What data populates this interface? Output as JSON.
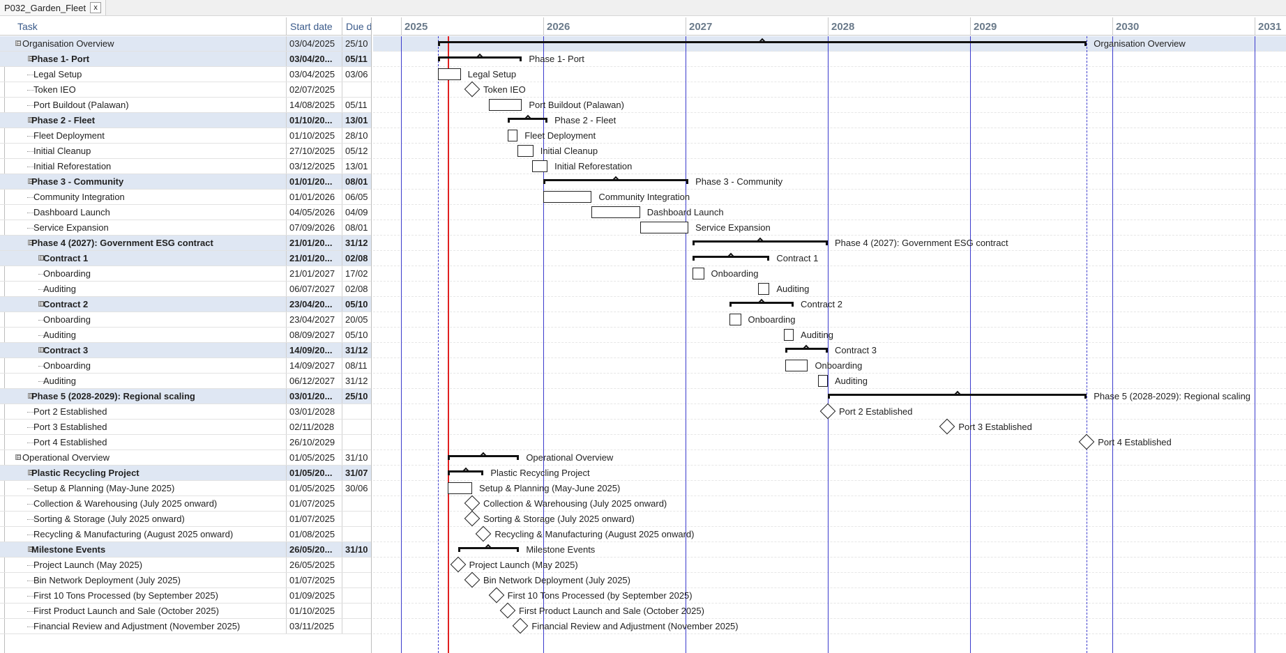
{
  "tab": {
    "title": "P032_Garden_Fleet",
    "close_label": "x"
  },
  "grid": {
    "columns": {
      "task": "Task",
      "start": "Start date",
      "due": "Due d"
    }
  },
  "timeline": {
    "years": [
      "2025",
      "2026",
      "2027",
      "2028",
      "2029",
      "2030",
      "2031"
    ]
  },
  "tasks": [
    {
      "name": "Organisation Overview",
      "start": "03/04/2025",
      "due": "25/10",
      "level": 0,
      "kind": "group",
      "expander": "⊟"
    },
    {
      "name": "Phase 1- Port",
      "start": "03/04/20...",
      "due": "05/11",
      "level": 1,
      "kind": "phase",
      "expander": "⊟"
    },
    {
      "name": "Legal Setup",
      "start": "03/04/2025",
      "due": "03/06",
      "level": 2,
      "kind": "task"
    },
    {
      "name": "Token IEO",
      "start": "02/07/2025",
      "due": "",
      "level": 2,
      "kind": "milestone"
    },
    {
      "name": "Port Buildout (Palawan)",
      "start": "14/08/2025",
      "due": "05/11",
      "level": 2,
      "kind": "task"
    },
    {
      "name": "Phase 2 - Fleet",
      "start": "01/10/20...",
      "due": "13/01",
      "level": 1,
      "kind": "phase",
      "expander": "⊟"
    },
    {
      "name": "Fleet Deployment",
      "start": "01/10/2025",
      "due": "28/10",
      "level": 2,
      "kind": "task"
    },
    {
      "name": "Initial Cleanup",
      "start": "27/10/2025",
      "due": "05/12",
      "level": 2,
      "kind": "task"
    },
    {
      "name": "Initial Reforestation",
      "start": "03/12/2025",
      "due": "13/01",
      "level": 2,
      "kind": "task"
    },
    {
      "name": "Phase 3 - Community",
      "start": "01/01/20...",
      "due": "08/01",
      "level": 1,
      "kind": "phase",
      "expander": "⊟"
    },
    {
      "name": "Community Integration",
      "start": "01/01/2026",
      "due": "06/05",
      "level": 2,
      "kind": "task"
    },
    {
      "name": "Dashboard Launch",
      "start": "04/05/2026",
      "due": "04/09",
      "level": 2,
      "kind": "task"
    },
    {
      "name": "Service Expansion",
      "start": "07/09/2026",
      "due": "08/01",
      "level": 2,
      "kind": "task"
    },
    {
      "name": "Phase 4 (2027): Government ESG contract",
      "start": "21/01/20...",
      "due": "31/12",
      "level": 1,
      "kind": "phase",
      "expander": "⊟"
    },
    {
      "name": "Contract 1",
      "start": "21/01/20...",
      "due": "02/08",
      "level": 2,
      "kind": "sub",
      "expander": "⊟"
    },
    {
      "name": "Onboarding",
      "start": "21/01/2027",
      "due": "17/02",
      "level": 3,
      "kind": "task"
    },
    {
      "name": "Auditing",
      "start": "06/07/2027",
      "due": "02/08",
      "level": 3,
      "kind": "task"
    },
    {
      "name": "Contract 2",
      "start": "23/04/20...",
      "due": "05/10",
      "level": 2,
      "kind": "sub",
      "expander": "⊟"
    },
    {
      "name": "Onboarding",
      "start": "23/04/2027",
      "due": "20/05",
      "level": 3,
      "kind": "task"
    },
    {
      "name": "Auditing",
      "start": "08/09/2027",
      "due": "05/10",
      "level": 3,
      "kind": "task"
    },
    {
      "name": "Contract 3",
      "start": "14/09/20...",
      "due": "31/12",
      "level": 2,
      "kind": "sub",
      "expander": "⊟"
    },
    {
      "name": "Onboarding",
      "start": "14/09/2027",
      "due": "08/11",
      "level": 3,
      "kind": "task"
    },
    {
      "name": "Auditing",
      "start": "06/12/2027",
      "due": "31/12",
      "level": 3,
      "kind": "task"
    },
    {
      "name": "Phase 5 (2028-2029): Regional scaling",
      "start": "03/01/20...",
      "due": "25/10",
      "level": 1,
      "kind": "phase",
      "expander": "⊟"
    },
    {
      "name": "Port 2 Established",
      "start": "03/01/2028",
      "due": "",
      "level": 2,
      "kind": "milestone"
    },
    {
      "name": "Port 3 Established",
      "start": "02/11/2028",
      "due": "",
      "level": 2,
      "kind": "milestone"
    },
    {
      "name": "Port 4 Established",
      "start": "26/10/2029",
      "due": "",
      "level": 2,
      "kind": "milestone"
    },
    {
      "name": "Operational Overview",
      "start": "01/05/2025",
      "due": "31/10",
      "level": 0,
      "kind": "group",
      "expander": "⊟"
    },
    {
      "name": "Plastic Recycling Project",
      "start": "01/05/20...",
      "due": "31/07",
      "level": 1,
      "kind": "phase",
      "expander": "⊟"
    },
    {
      "name": "Setup & Planning (May-June 2025)",
      "start": "01/05/2025",
      "due": "30/06",
      "level": 2,
      "kind": "task"
    },
    {
      "name": "Collection & Warehousing (July 2025 onward)",
      "start": "01/07/2025",
      "due": "",
      "level": 2,
      "kind": "milestone"
    },
    {
      "name": "Sorting & Storage (July 2025 onward)",
      "start": "01/07/2025",
      "due": "",
      "level": 2,
      "kind": "milestone"
    },
    {
      "name": "Recycling & Manufacturing (August 2025 onward)",
      "start": "01/08/2025",
      "due": "",
      "level": 2,
      "kind": "milestone"
    },
    {
      "name": "Milestone Events",
      "start": "26/05/20...",
      "due": "31/10",
      "level": 1,
      "kind": "phase",
      "expander": "⊟"
    },
    {
      "name": "Project Launch (May 2025)",
      "start": "26/05/2025",
      "due": "",
      "level": 2,
      "kind": "milestone"
    },
    {
      "name": "Bin Network Deployment (July 2025)",
      "start": "01/07/2025",
      "due": "",
      "level": 2,
      "kind": "milestone"
    },
    {
      "name": "First 10 Tons Processed (by September 2025)",
      "start": "01/09/2025",
      "due": "",
      "level": 2,
      "kind": "milestone"
    },
    {
      "name": "First Product Launch and Sale (October 2025)",
      "start": "01/10/2025",
      "due": "",
      "level": 2,
      "kind": "milestone"
    },
    {
      "name": "Financial Review and Adjustment (November 2025)",
      "start": "03/11/2025",
      "due": "",
      "level": 2,
      "kind": "milestone"
    }
  ],
  "gantt_items": [
    {
      "label": "Organisation Overview",
      "type": "summary",
      "start": 2025.26,
      "end": 2029.82
    },
    {
      "label": "Phase 1- Port",
      "type": "summary",
      "start": 2025.26,
      "end": 2025.85
    },
    {
      "label": "Legal Setup",
      "type": "bar",
      "start": 2025.26,
      "end": 2025.42
    },
    {
      "label": "Token IEO",
      "type": "milestone",
      "start": 2025.5
    },
    {
      "label": "Port Buildout (Palawan)",
      "type": "bar",
      "start": 2025.62,
      "end": 2025.85
    },
    {
      "label": "Phase 2 - Fleet",
      "type": "summary",
      "start": 2025.75,
      "end": 2026.03
    },
    {
      "label": "Fleet Deployment",
      "type": "bar",
      "start": 2025.75,
      "end": 2025.82
    },
    {
      "label": "Initial Cleanup",
      "type": "bar",
      "start": 2025.82,
      "end": 2025.93
    },
    {
      "label": "Initial Reforestation",
      "type": "bar",
      "start": 2025.92,
      "end": 2026.03
    },
    {
      "label": "Phase 3 - Community",
      "type": "summary",
      "start": 2026.0,
      "end": 2027.02
    },
    {
      "label": "Community Integration",
      "type": "bar",
      "start": 2026.0,
      "end": 2026.34
    },
    {
      "label": "Dashboard Launch",
      "type": "bar",
      "start": 2026.34,
      "end": 2026.68
    },
    {
      "label": "Service Expansion",
      "type": "bar",
      "start": 2026.68,
      "end": 2027.02
    },
    {
      "label": "Phase 4 (2027): Government ESG contract",
      "type": "summary",
      "start": 2027.05,
      "end": 2028.0
    },
    {
      "label": "Contract 1",
      "type": "summary",
      "start": 2027.05,
      "end": 2027.59
    },
    {
      "label": "Onboarding",
      "type": "bar",
      "start": 2027.05,
      "end": 2027.13
    },
    {
      "label": "Auditing",
      "type": "bar",
      "start": 2027.51,
      "end": 2027.59
    },
    {
      "label": "Contract 2",
      "type": "summary",
      "start": 2027.31,
      "end": 2027.76
    },
    {
      "label": "Onboarding",
      "type": "bar",
      "start": 2027.31,
      "end": 2027.39
    },
    {
      "label": "Auditing",
      "type": "bar",
      "start": 2027.69,
      "end": 2027.76
    },
    {
      "label": "Contract 3",
      "type": "summary",
      "start": 2027.7,
      "end": 2028.0
    },
    {
      "label": "Onboarding",
      "type": "bar",
      "start": 2027.7,
      "end": 2027.86
    },
    {
      "label": "Auditing",
      "type": "bar",
      "start": 2027.93,
      "end": 2028.0
    },
    {
      "label": "Phase 5 (2028-2029): Regional scaling",
      "type": "summary",
      "start": 2028.0,
      "end": 2029.82
    },
    {
      "label": "Port 2 Established",
      "type": "milestone",
      "start": 2028.0
    },
    {
      "label": "Port 3 Established",
      "type": "milestone",
      "start": 2028.84
    },
    {
      "label": "Port 4 Established",
      "type": "milestone",
      "start": 2029.82
    },
    {
      "label": "Operational Overview",
      "type": "summary",
      "start": 2025.33,
      "end": 2025.83
    },
    {
      "label": "Plastic Recycling Project",
      "type": "summary",
      "start": 2025.33,
      "end": 2025.58
    },
    {
      "label": "Setup & Planning (May-June 2025)",
      "type": "bar",
      "start": 2025.33,
      "end": 2025.5
    },
    {
      "label": "Collection & Warehousing (July 2025 onward)",
      "type": "milestone",
      "start": 2025.5
    },
    {
      "label": "Sorting & Storage (July 2025 onward)",
      "type": "milestone",
      "start": 2025.5
    },
    {
      "label": "Recycling & Manufacturing (August 2025 onward)",
      "type": "milestone",
      "start": 2025.58
    },
    {
      "label": "Milestone Events",
      "type": "summary",
      "start": 2025.4,
      "end": 2025.83
    },
    {
      "label": "Project Launch (May 2025)",
      "type": "milestone",
      "start": 2025.4
    },
    {
      "label": "Bin Network Deployment (July 2025)",
      "type": "milestone",
      "start": 2025.5
    },
    {
      "label": "First 10 Tons Processed (by September 2025)",
      "type": "milestone",
      "start": 2025.67
    },
    {
      "label": "First Product Launch and Sale (October 2025)",
      "type": "milestone",
      "start": 2025.75
    },
    {
      "label": "Financial Review and Adjustment (November 2025)",
      "type": "milestone",
      "start": 2025.84
    }
  ],
  "markers": {
    "today": 2025.33,
    "project_start": 2025.26,
    "project_end": 2029.82
  },
  "colors": {
    "summary_row_bg": "#dfe7f3",
    "year_line": "#3a3acc",
    "today_line": "#e02020",
    "header_text": "#3a5a8a"
  }
}
